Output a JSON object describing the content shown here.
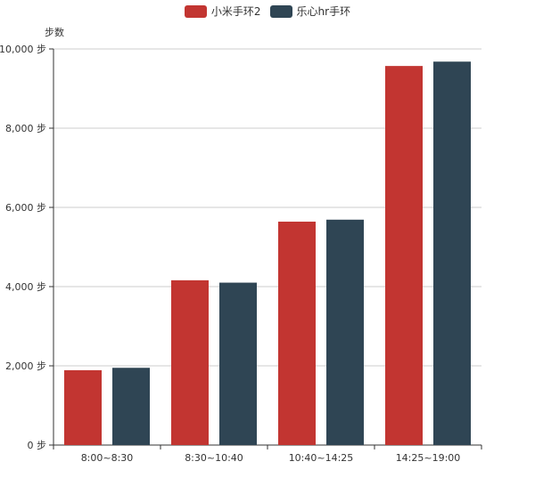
{
  "chart_data": {
    "type": "bar",
    "ylabel": "步数",
    "y_unit": "步",
    "ylim": [
      0,
      10000
    ],
    "yticks": [
      0,
      2000,
      4000,
      6000,
      8000,
      10000
    ],
    "ytick_labels": [
      "0 步",
      "2,000 步",
      "4,000 步",
      "6,000 步",
      "8,000 步",
      "10,000 步"
    ],
    "grid": true,
    "legend": "top",
    "categories": [
      "8:00~8:30",
      "8:30~10:40",
      "10:40~14:25",
      "14:25~19:00"
    ],
    "series": [
      {
        "name": "小米手环2",
        "color": "#c23531",
        "values": [
          1890,
          4160,
          5640,
          9570
        ]
      },
      {
        "name": "乐心hr手环",
        "color": "#2f4554",
        "values": [
          1950,
          4100,
          5690,
          9680
        ]
      }
    ]
  }
}
